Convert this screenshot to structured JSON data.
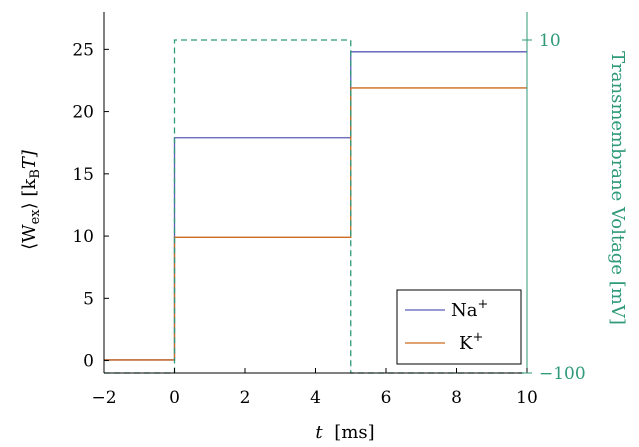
{
  "chart_data": {
    "type": "line",
    "xlabel_var": "t",
    "xlabel_unit": "[ms]",
    "ylabel_left_main": "⟨W",
    "ylabel_left_sub": "ex",
    "ylabel_left_close": "⟩ [k",
    "ylabel_left_sub2": "B",
    "ylabel_left_end": "T]",
    "ylabel_right": "Transmembrane Voltage [mV]",
    "xlim": [
      -2,
      10
    ],
    "ylim_left": [
      -1,
      28
    ],
    "ylim_right": [
      -100,
      10
    ],
    "x_ticks": [
      -2,
      0,
      2,
      4,
      6,
      8,
      10
    ],
    "x_tick_labels": [
      "−2",
      "0",
      "2",
      "4",
      "6",
      "8",
      "10"
    ],
    "y_ticks_left": [
      0,
      5,
      10,
      15,
      20,
      25
    ],
    "y_tick_labels_left": [
      "0",
      "5",
      "10",
      "15",
      "20",
      "25"
    ],
    "y_ticks_right": [
      -100,
      10
    ],
    "y_tick_labels_right": [
      "−100",
      "10"
    ],
    "series": [
      {
        "name": "Na⁺",
        "axis": "left",
        "color": "#5b5bb8",
        "style": "solid",
        "x": [
          -2,
          0,
          0,
          5,
          5,
          10
        ],
        "y": [
          0.05,
          0.05,
          17.9,
          17.9,
          24.8,
          24.8
        ]
      },
      {
        "name": "K⁺",
        "axis": "left",
        "color": "#cc6a1e",
        "style": "solid",
        "x": [
          -2,
          0,
          0,
          5,
          5,
          10
        ],
        "y": [
          0.05,
          0.05,
          9.9,
          9.9,
          21.9,
          21.9
        ]
      },
      {
        "axis": "right",
        "color": "#2f9a7a",
        "style": "dashed",
        "x": [
          -2,
          0,
          0,
          5,
          5,
          10
        ],
        "y": [
          -100,
          -100,
          10,
          10,
          -100,
          -100
        ]
      }
    ],
    "legend": {
      "placement": "bottom-right",
      "entries": [
        {
          "base": "Na",
          "sup": "+"
        },
        {
          "base": "K",
          "sup": "+"
        }
      ]
    },
    "grid": false
  }
}
